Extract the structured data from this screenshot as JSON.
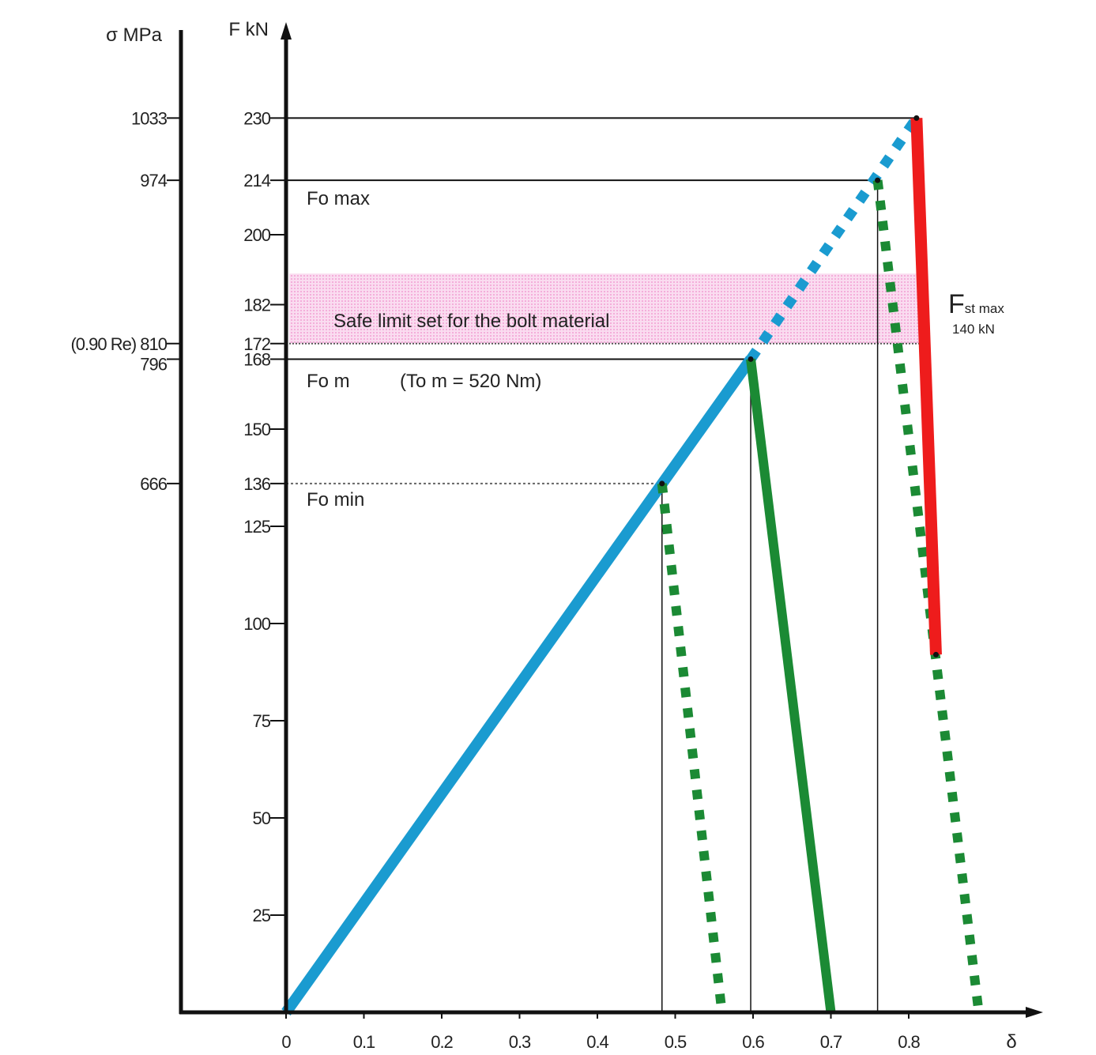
{
  "chart_data": {
    "type": "line",
    "x_label": "δ",
    "x_ticks": [
      0,
      0.1,
      0.2,
      0.3,
      0.4,
      0.5,
      0.6,
      0.7,
      0.8
    ],
    "x_tick_labels": [
      "0",
      "0.1",
      "0.2",
      "0.3",
      "0.4",
      "0.5",
      "0.6",
      "0.7",
      "0.8"
    ],
    "f_axis": {
      "label": "F kN",
      "ticks": [
        25,
        50,
        75,
        100,
        125,
        136,
        150,
        168,
        172,
        182,
        200,
        214,
        230
      ],
      "tick_labels": [
        "25",
        "50",
        "75",
        "100",
        "125",
        "136",
        "150",
        "168",
        "172",
        "182",
        "200",
        "214",
        "230"
      ]
    },
    "sigma_axis": {
      "label": "σ MPa",
      "ticks": [
        {
          "f": 136,
          "label": "666"
        },
        {
          "f": 168,
          "label": "796"
        },
        {
          "f": 172,
          "label": "(0.90 Re) 810"
        },
        {
          "f": 214,
          "label": "974"
        },
        {
          "f": 230,
          "label": "1033"
        }
      ]
    },
    "safe_band": {
      "label": "Safe limit set for the bolt material",
      "from": 172,
      "to": 190,
      "color": "#f7c4e6"
    },
    "annotations": {
      "fo_max": "Fo max",
      "fo_m": "Fo m",
      "fo_m_note": "(To m = 520 Nm)",
      "fo_min": "Fo min",
      "fst_main": "F",
      "fst_sub": "st max",
      "fst_value": "140 kN"
    },
    "reference_lines": [
      {
        "f": 230,
        "to_x": 0.81
      },
      {
        "f": 214,
        "to_x": 0.76
      },
      {
        "f": 168,
        "to_x": 0.597
      },
      {
        "f": 136,
        "to_x": 0.483,
        "dotted": true
      }
    ],
    "series": [
      {
        "style": "bolt-solid",
        "color": "#1a9bd0",
        "points": [
          [
            0,
            0
          ],
          [
            0.597,
            168
          ]
        ]
      },
      {
        "style": "bolt-dotted",
        "color": "#1a9bd0",
        "points": [
          [
            0.597,
            168
          ],
          [
            0.81,
            230
          ]
        ]
      },
      {
        "style": "joint-dotted",
        "color": "#1b8a34",
        "points": [
          [
            0.483,
            136
          ],
          [
            0.56,
            0
          ]
        ]
      },
      {
        "style": "joint-solid",
        "color": "#1b8a34",
        "points": [
          [
            0.597,
            168
          ],
          [
            0.7,
            0
          ]
        ]
      },
      {
        "style": "joint-dotted",
        "color": "#1b8a34",
        "points": [
          [
            0.76,
            214
          ],
          [
            0.89,
            0
          ]
        ]
      },
      {
        "style": "red-solid",
        "color": "#ee1c1c",
        "points": [
          [
            0.81,
            230
          ],
          [
            0.835,
            92
          ]
        ]
      }
    ],
    "colors": {
      "bolt": "#1a9bd0",
      "joint": "#1b8a34",
      "limit": "#ee1c1c",
      "band": "#f7c4e6"
    }
  }
}
